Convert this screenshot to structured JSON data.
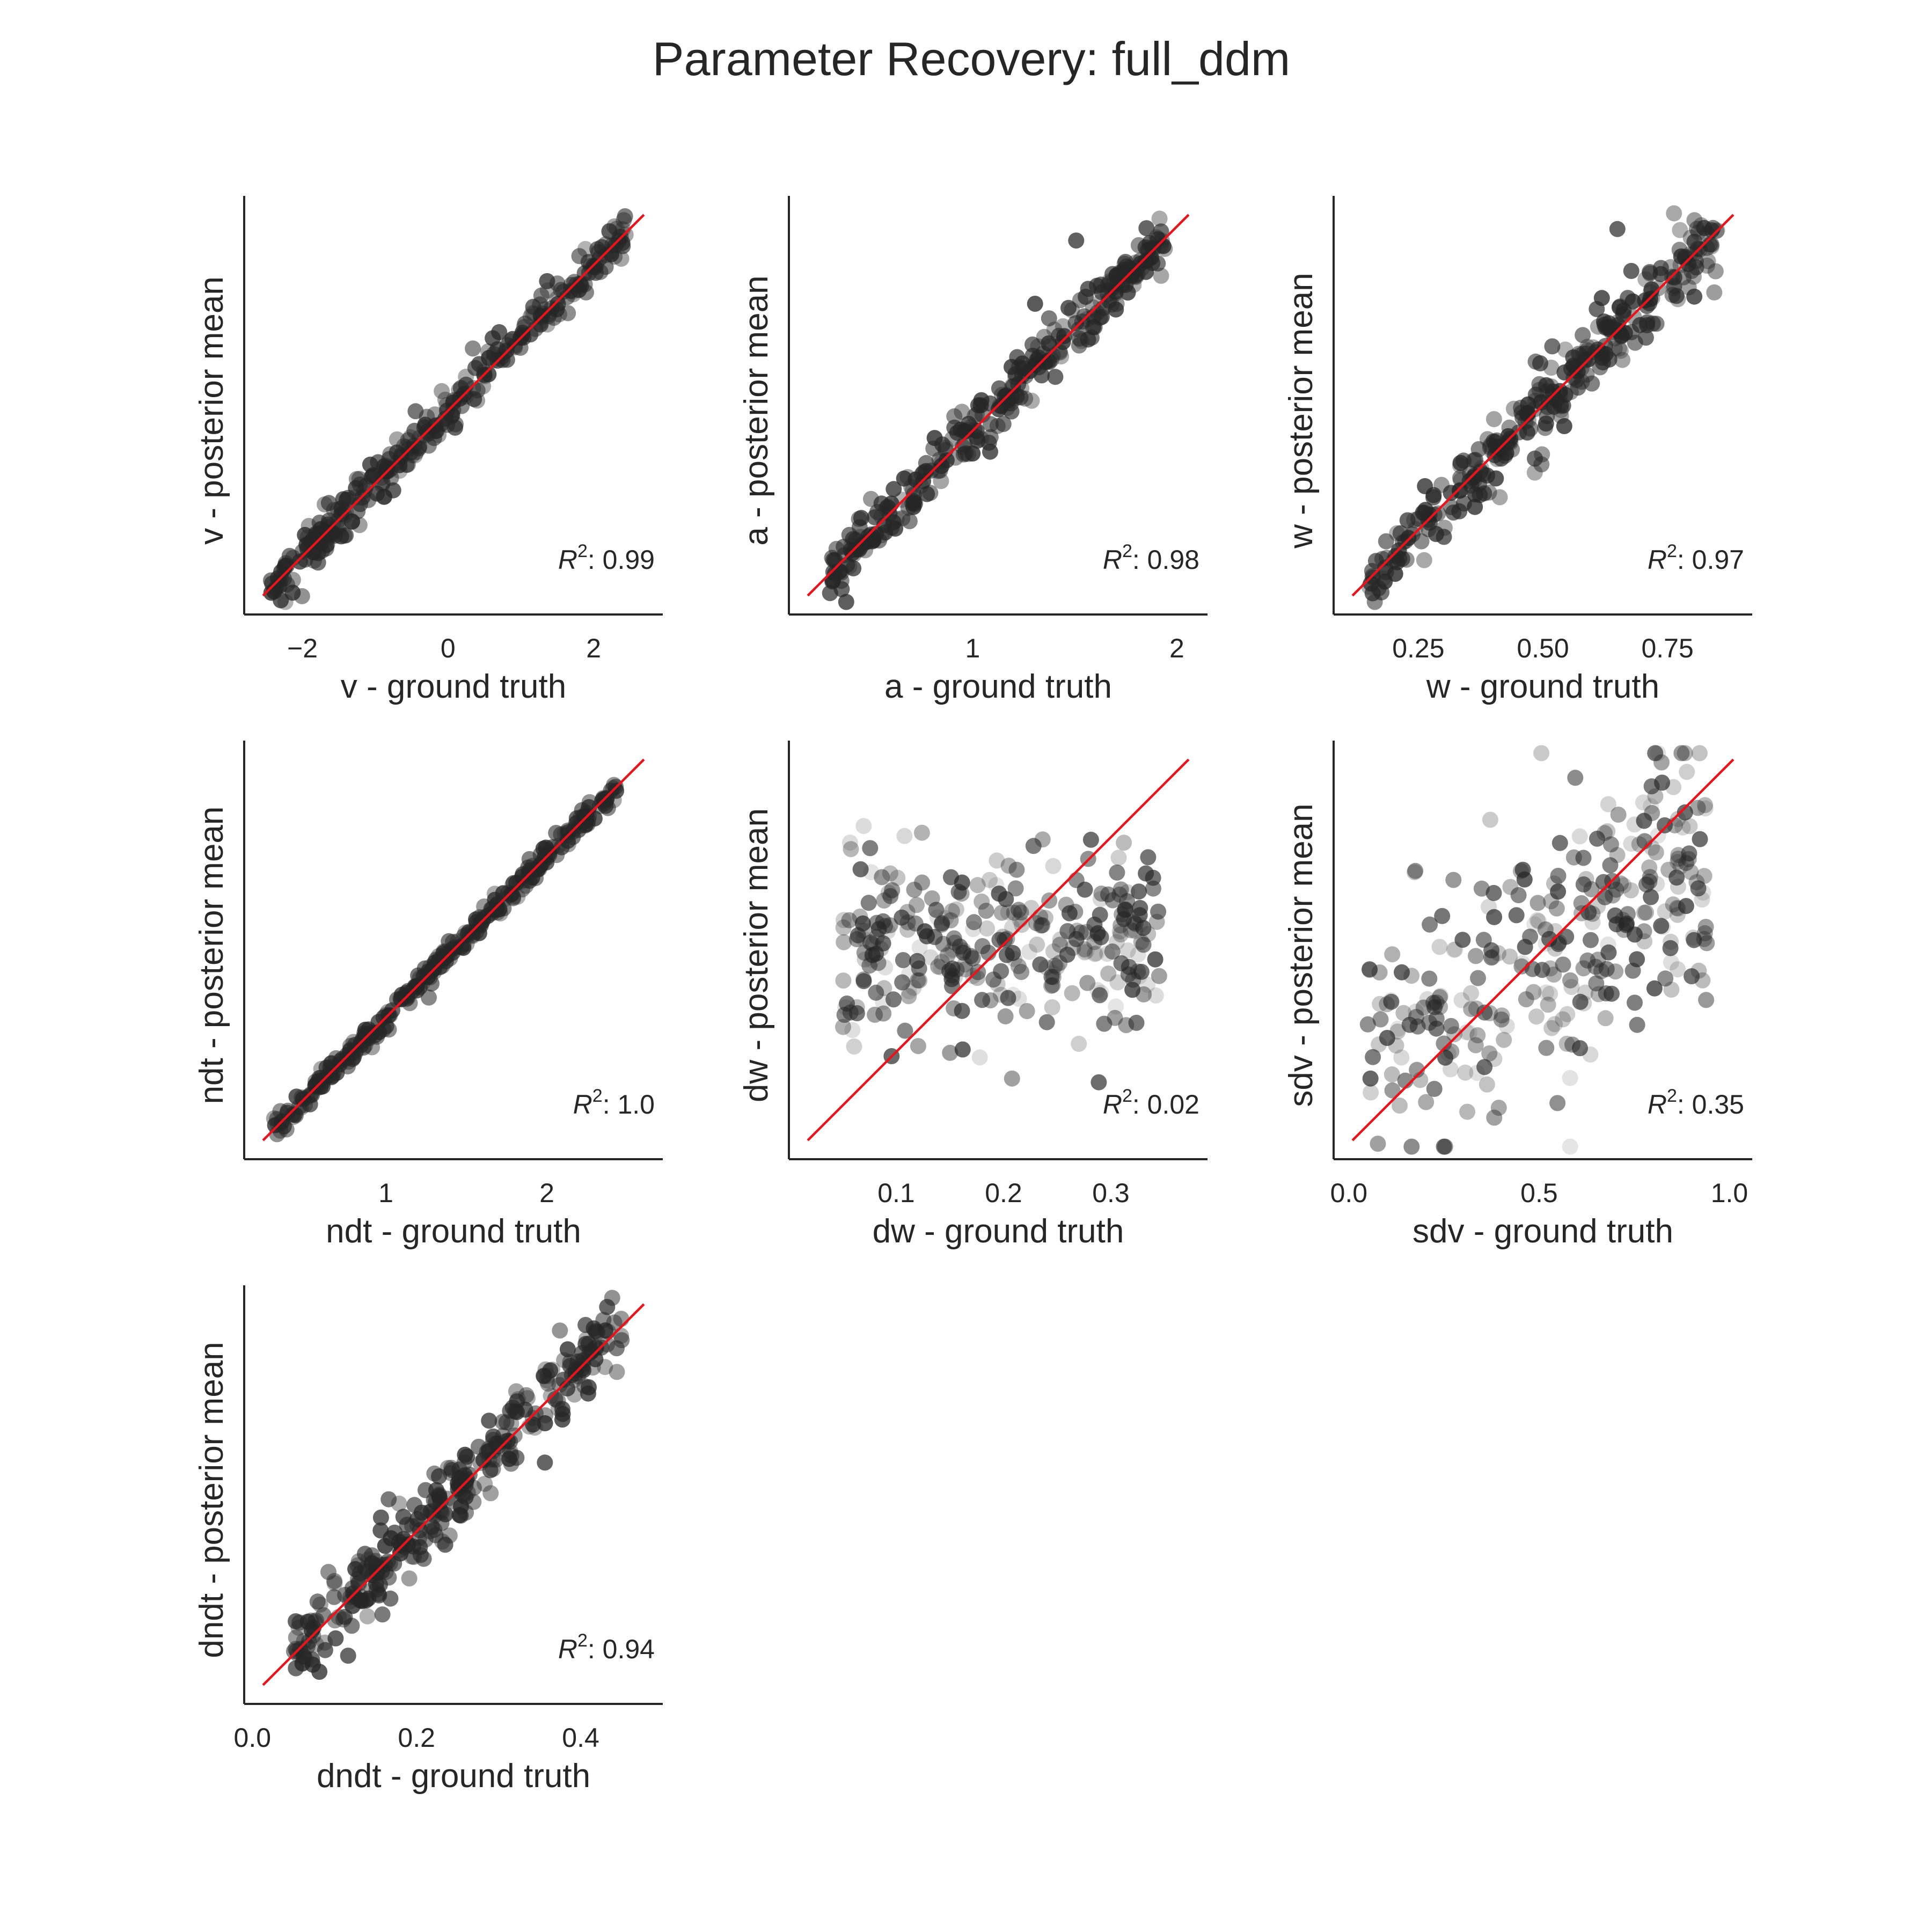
{
  "figure": {
    "title": "Parameter Recovery: full_ddm",
    "identity_line_color": "#e8141c",
    "point_color": "#262626"
  },
  "chart_data": [
    {
      "type": "scatter",
      "xlabel": "v - ground truth",
      "ylabel": "v - posterior mean",
      "xlim": [
        -2.8,
        2.95
      ],
      "ylim": [
        -2.8,
        2.95
      ],
      "xticks": [
        -2,
        0,
        2
      ],
      "xtick_labels": [
        "−2",
        "0",
        "2"
      ],
      "r2_label": "0.99",
      "params": {
        "min": -2.45,
        "max": 2.45,
        "noise": 0.14,
        "quality": 0.99,
        "seed": 11
      }
    },
    {
      "type": "scatter",
      "xlabel": "a - ground truth",
      "ylabel": "a - posterior mean",
      "xlim": [
        0.1,
        2.15
      ],
      "ylim": [
        0.1,
        2.15
      ],
      "xticks": [
        1,
        2
      ],
      "xtick_labels": [
        "1",
        "2"
      ],
      "r2_label": "0.98",
      "params": {
        "min": 0.3,
        "max": 1.95,
        "noise": 0.06,
        "quality": 0.98,
        "seed": 23
      }
    },
    {
      "type": "scatter",
      "xlabel": "w - ground truth",
      "ylabel": "w - posterior mean",
      "xlim": [
        0.08,
        0.92
      ],
      "ylim": [
        0.08,
        0.92
      ],
      "xticks": [
        0.25,
        0.5,
        0.75
      ],
      "xtick_labels": [
        "0.25",
        "0.50",
        "0.75"
      ],
      "r2_label": "0.97",
      "params": {
        "min": 0.15,
        "max": 0.85,
        "noise": 0.035,
        "quality": 0.97,
        "seed": 37
      }
    },
    {
      "type": "scatter",
      "xlabel": "ndt - ground truth",
      "ylabel": "ndt - posterior mean",
      "xlim": [
        0.12,
        2.72
      ],
      "ylim": [
        0.12,
        2.72
      ],
      "xticks": [
        1,
        2
      ],
      "xtick_labels": [
        "1",
        "2"
      ],
      "r2_label": "1.0",
      "params": {
        "min": 0.3,
        "max": 2.45,
        "noise": 0.035,
        "quality": 1.0,
        "seed": 41
      }
    },
    {
      "type": "scatter",
      "xlabel": "dw - ground truth",
      "ylabel": "dw - posterior mean",
      "xlim": [
        0.0,
        0.39
      ],
      "ylim": [
        0.0,
        0.39
      ],
      "xticks": [
        0.1,
        0.2,
        0.3
      ],
      "xtick_labels": [
        "0.1",
        "0.2",
        "0.3"
      ],
      "r2_label": "0.02",
      "params": {
        "min": 0.05,
        "max": 0.345,
        "noise": 0.045,
        "center": 0.2,
        "slope": 0.05,
        "quality": 0.02,
        "seed": 53
      }
    },
    {
      "type": "scatter",
      "xlabel": "sdv - ground truth",
      "ylabel": "sdv - posterior mean",
      "xlim": [
        -0.04,
        1.06
      ],
      "ylim": [
        -0.04,
        1.06
      ],
      "xticks": [
        0.0,
        0.5,
        1.0
      ],
      "xtick_labels": [
        "0.0",
        "0.5",
        "1.0"
      ],
      "r2_label": "0.35",
      "params": {
        "min": 0.05,
        "max": 0.95,
        "noise": 0.17,
        "center": 0.5,
        "slope": 0.55,
        "quality": 0.35,
        "seed": 67
      }
    },
    {
      "type": "scatter",
      "xlabel": "dndt - ground truth",
      "ylabel": "dndt - posterior mean",
      "xlim": [
        -0.01,
        0.5
      ],
      "ylim": [
        -0.01,
        0.5
      ],
      "xticks": [
        0.0,
        0.2,
        0.4
      ],
      "xtick_labels": [
        "0.0",
        "0.2",
        "0.4"
      ],
      "r2_label": "0.94",
      "params": {
        "min": 0.05,
        "max": 0.45,
        "noise": 0.025,
        "quality": 0.94,
        "seed": 79
      }
    }
  ]
}
